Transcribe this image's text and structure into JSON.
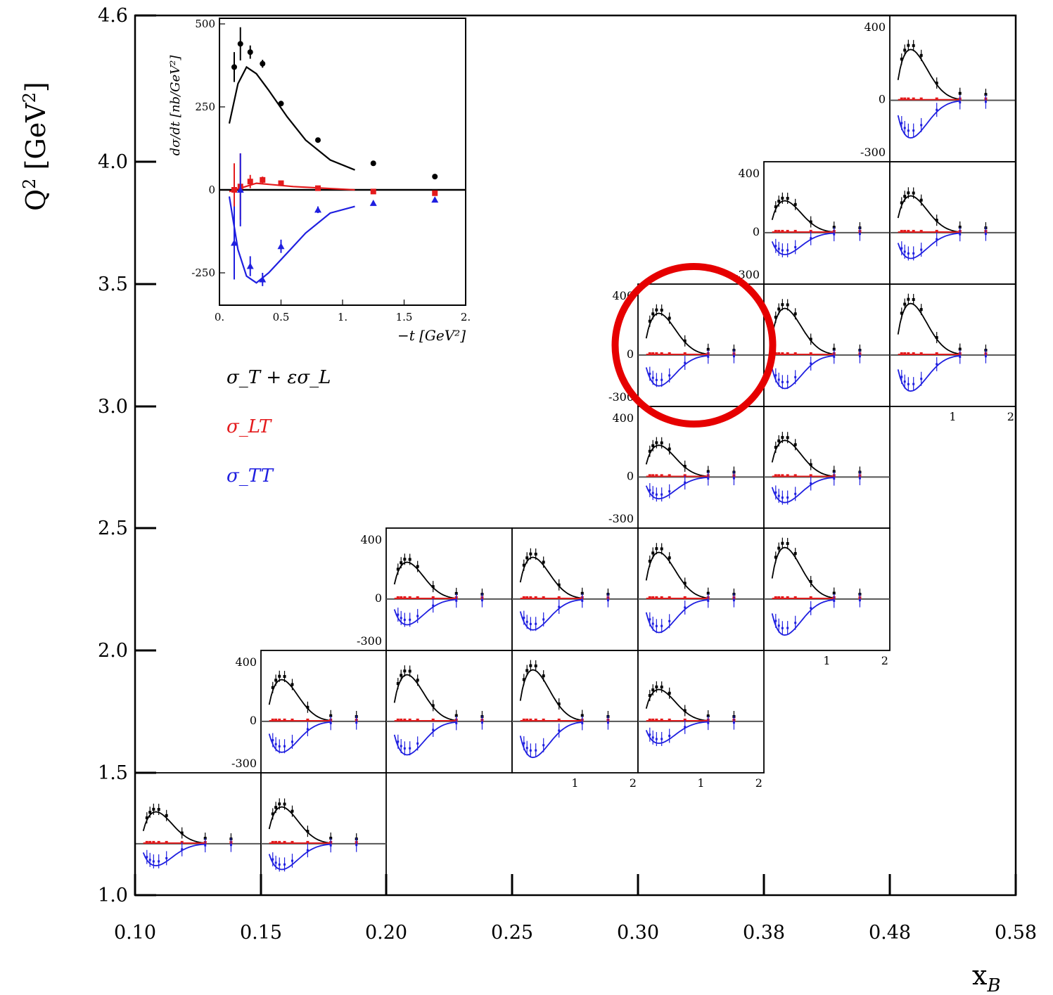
{
  "figure": {
    "ylabel_main": "Q",
    "ylabel_sup": "2",
    "ylabel_unit_open": "[GeV",
    "ylabel_unit_sup": "2",
    "ylabel_unit_close": "]",
    "xlabel_main": "x",
    "xlabel_sub": "B",
    "x_ticks": [
      "0.10",
      "0.15",
      "0.20",
      "0.25",
      "0.30",
      "0.38",
      "0.48",
      "0.58"
    ],
    "y_ticks": [
      "1.0",
      "1.5",
      "2.0",
      "2.5",
      "3.0",
      "3.5",
      "4.0",
      "4.6"
    ]
  },
  "inset": {
    "ylabel": "dσ/dt [nb/GeV²]",
    "xlabel": "−t [GeV²]",
    "y_ticks": [
      "500",
      "250",
      "0",
      "-250"
    ],
    "x_ticks": [
      "0.",
      "0.5",
      "1.",
      "1.5",
      "2."
    ]
  },
  "legend": {
    "items": [
      {
        "label": "σ_T + εσ_L",
        "color": "#000000"
      },
      {
        "label": "σ_LT",
        "color": "#e41a1c"
      },
      {
        "label": "σ_TT",
        "color": "#1f1fe0"
      }
    ]
  },
  "panels": {
    "y_ticks_left": [
      "400",
      "0",
      "-300"
    ],
    "x_ticks_bottom": [
      "1",
      "2"
    ]
  },
  "colors": {
    "sigma_T": "#000000",
    "sigma_LT": "#e41a1c",
    "sigma_TT": "#1f1fe0",
    "highlight": "#e60000"
  },
  "chart_data": {
    "type": "scatter",
    "title": "",
    "xlabel": "x_B",
    "ylabel": "Q² [GeV²]",
    "x_bins": [
      0.1,
      0.15,
      0.2,
      0.25,
      0.3,
      0.38,
      0.48,
      0.58
    ],
    "y_bins": [
      1.0,
      1.5,
      2.0,
      2.5,
      3.0,
      3.5,
      4.0,
      4.6
    ],
    "panel_y_range": [
      -300,
      500
    ],
    "panel_x_range": [
      0,
      2
    ],
    "occupied_cells": [
      [
        0,
        0
      ],
      [
        1,
        0
      ],
      [
        1,
        1
      ],
      [
        2,
        1
      ],
      [
        3,
        1
      ],
      [
        4,
        1
      ],
      [
        2,
        2
      ],
      [
        3,
        2
      ],
      [
        4,
        2
      ],
      [
        5,
        2
      ],
      [
        4,
        3
      ],
      [
        5,
        3
      ],
      [
        4,
        4
      ],
      [
        5,
        4
      ],
      [
        6,
        4
      ],
      [
        5,
        5
      ],
      [
        6,
        5
      ],
      [
        6,
        6
      ]
    ],
    "highlighted_cell": [
      4,
      4
    ],
    "inset_series": [
      {
        "name": "σ_T + εσ_L",
        "x": [
          0.12,
          0.17,
          0.25,
          0.35,
          0.5,
          0.8,
          1.25,
          1.75
        ],
        "y": [
          370,
          440,
          415,
          380,
          260,
          150,
          80,
          40
        ],
        "err": [
          45,
          50,
          20,
          12,
          8,
          6,
          4,
          3
        ]
      },
      {
        "name": "σ_LT",
        "x": [
          0.12,
          0.17,
          0.25,
          0.35,
          0.5,
          0.8,
          1.25,
          1.75
        ],
        "y": [
          0,
          10,
          25,
          30,
          20,
          5,
          -5,
          -10
        ],
        "err": [
          80,
          100,
          20,
          10,
          6,
          4,
          3,
          3
        ]
      },
      {
        "name": "σ_TT",
        "x": [
          0.12,
          0.17,
          0.25,
          0.35,
          0.5,
          0.8,
          1.25,
          1.75
        ],
        "y": [
          -160,
          0,
          -230,
          -270,
          -170,
          -60,
          -40,
          -30
        ],
        "err": [
          110,
          110,
          30,
          20,
          20,
          10,
          4,
          3
        ]
      }
    ],
    "inset_curves": [
      {
        "name": "σ_T + εσ_L",
        "x": [
          0.08,
          0.15,
          0.22,
          0.3,
          0.4,
          0.55,
          0.7,
          0.9,
          1.1
        ],
        "y": [
          200,
          320,
          370,
          350,
          300,
          220,
          150,
          90,
          60
        ]
      },
      {
        "name": "σ_LT",
        "x": [
          0.08,
          0.3,
          0.6,
          1.1
        ],
        "y": [
          -5,
          20,
          10,
          0
        ]
      },
      {
        "name": "σ_TT",
        "x": [
          0.08,
          0.15,
          0.22,
          0.3,
          0.4,
          0.55,
          0.7,
          0.9,
          1.1
        ],
        "y": [
          -20,
          -180,
          -260,
          -280,
          -250,
          -190,
          -130,
          -70,
          -50
        ]
      }
    ]
  }
}
